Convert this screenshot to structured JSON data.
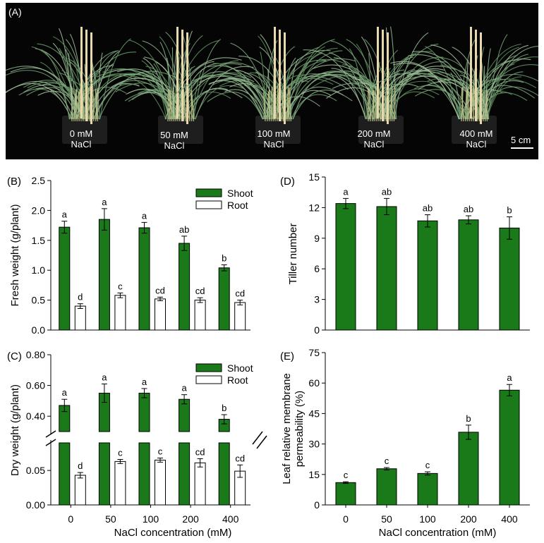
{
  "photo": {
    "panel_label": "(A)",
    "pots": [
      {
        "conc": "0 mM",
        "salt": "NaCl"
      },
      {
        "conc": "50 mM",
        "salt": "NaCl"
      },
      {
        "conc": "100 mM",
        "salt": "NaCl"
      },
      {
        "conc": "200 mM",
        "salt": "NaCl"
      },
      {
        "conc": "400 mM",
        "salt": "NaCl"
      }
    ],
    "scale_bar": "5 cm"
  },
  "colors": {
    "shoot": "#1a7a1a",
    "root": "#ffffff",
    "photo_bg": "#050505"
  },
  "chart_data": [
    {
      "panel": "(B)",
      "type": "bar",
      "ylabel": "Fresh weight (g/plant)",
      "categories": [
        "0",
        "50",
        "100",
        "200",
        "400"
      ],
      "ylim": [
        0,
        2.5
      ],
      "yticks": [
        "0.0",
        "0.5",
        "1.0",
        "1.5",
        "2.0",
        "2.5"
      ],
      "legend": [
        "Shoot",
        "Root"
      ],
      "series": [
        {
          "name": "Shoot",
          "values": [
            1.72,
            1.85,
            1.71,
            1.45,
            1.04
          ],
          "errors": [
            0.1,
            0.18,
            0.09,
            0.12,
            0.05
          ],
          "letters": [
            "a",
            "a",
            "a",
            "ab",
            "b"
          ]
        },
        {
          "name": "Root",
          "values": [
            0.4,
            0.58,
            0.52,
            0.5,
            0.46
          ],
          "errors": [
            0.04,
            0.04,
            0.03,
            0.04,
            0.04
          ],
          "letters": [
            "d",
            "c",
            "cd",
            "cd",
            "cd"
          ]
        }
      ]
    },
    {
      "panel": "(C)",
      "type": "bar",
      "ylabel": "Dry weight (g/plant)",
      "xlabel": "NaCl concentration (mM)",
      "categories": [
        "0",
        "50",
        "100",
        "200",
        "400"
      ],
      "broken_axis": true,
      "ylim_lower": [
        0,
        0.09
      ],
      "ylim_upper": [
        0.3,
        0.8
      ],
      "yticks_lower": [
        "0.00",
        "0.05"
      ],
      "yticks_upper": [
        "0.40",
        "0.60",
        "0.80"
      ],
      "legend": [
        "Shoot",
        "Root"
      ],
      "series": [
        {
          "name": "Shoot",
          "values": [
            0.47,
            0.55,
            0.55,
            0.51,
            0.38
          ],
          "errors": [
            0.04,
            0.06,
            0.03,
            0.03,
            0.03
          ],
          "letters": [
            "a",
            "a",
            "a",
            "a",
            "b"
          ]
        },
        {
          "name": "Root",
          "values": [
            0.043,
            0.063,
            0.065,
            0.061,
            0.049
          ],
          "errors": [
            0.004,
            0.003,
            0.003,
            0.006,
            0.009
          ],
          "letters": [
            "d",
            "c",
            "c",
            "cd",
            "cd"
          ]
        }
      ]
    },
    {
      "panel": "(D)",
      "type": "bar",
      "ylabel": "Tiller number",
      "categories": [
        "0",
        "50",
        "100",
        "200",
        "400"
      ],
      "ylim": [
        0,
        15
      ],
      "yticks": [
        "0",
        "3",
        "6",
        "9",
        "12",
        "15"
      ],
      "series": [
        {
          "name": "Tiller number",
          "values": [
            12.4,
            12.1,
            10.7,
            10.8,
            10.0
          ],
          "errors": [
            0.5,
            0.8,
            0.6,
            0.4,
            1.1
          ],
          "letters": [
            "a",
            "ab",
            "ab",
            "ab",
            "b"
          ]
        }
      ]
    },
    {
      "panel": "(E)",
      "type": "bar",
      "ylabel": "Leaf relative membrane permeability (%)",
      "ylabel_lines": [
        "Leaf relative membrane",
        "permeability (%)"
      ],
      "xlabel": "NaCl concentration (mM)",
      "categories": [
        "0",
        "50",
        "100",
        "200",
        "400"
      ],
      "ylim": [
        0,
        75
      ],
      "yticks": [
        "0",
        "15",
        "30",
        "45",
        "60",
        "75"
      ],
      "series": [
        {
          "name": "Permeability",
          "values": [
            11.0,
            17.8,
            15.5,
            35.8,
            56.5
          ],
          "errors": [
            0.4,
            0.6,
            0.8,
            3.5,
            2.8
          ],
          "letters": [
            "c",
            "c",
            "c",
            "b",
            "a"
          ]
        }
      ]
    }
  ]
}
